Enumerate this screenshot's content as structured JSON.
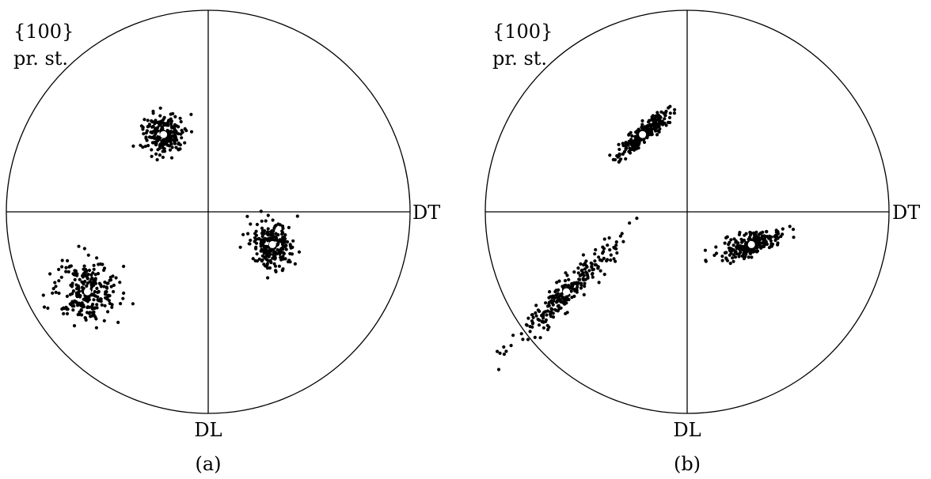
{
  "colors": {
    "ink": "#000000",
    "background": "#ffffff",
    "pole": "#ffffff"
  },
  "panels": [
    {
      "key": "a",
      "caption": "(a)",
      "title_line1": "{100}",
      "title_line2": "pr. st.",
      "axis_right": "DT",
      "axis_bottom": "DL",
      "poles": [
        {
          "x": -0.34,
          "y": 0.59,
          "spread_x": 0.05,
          "spread_y": 0.05,
          "tilt_deg": 0,
          "count": 230
        },
        {
          "x": 0.49,
          "y": -0.25,
          "spread_x": 0.055,
          "spread_y": 0.055,
          "tilt_deg": 0,
          "count": 230
        },
        {
          "x": -0.92,
          "y": -0.61,
          "spread_x": 0.075,
          "spread_y": 0.075,
          "tilt_deg": 0,
          "count": 260
        }
      ]
    },
    {
      "key": "b",
      "caption": "(b)",
      "title_line1": "{100}",
      "title_line2": "pr. st.",
      "axis_right": "DT",
      "axis_bottom": "DL",
      "poles": [
        {
          "x": -0.34,
          "y": 0.59,
          "spread_x": 0.085,
          "spread_y": 0.02,
          "tilt_deg": 40,
          "count": 230
        },
        {
          "x": 0.49,
          "y": -0.25,
          "spread_x": 0.08,
          "spread_y": 0.025,
          "tilt_deg": 18,
          "count": 230
        },
        {
          "x": -0.92,
          "y": -0.61,
          "spread_x": 0.17,
          "spread_y": 0.028,
          "tilt_deg": 45,
          "count": 260
        }
      ]
    }
  ]
}
